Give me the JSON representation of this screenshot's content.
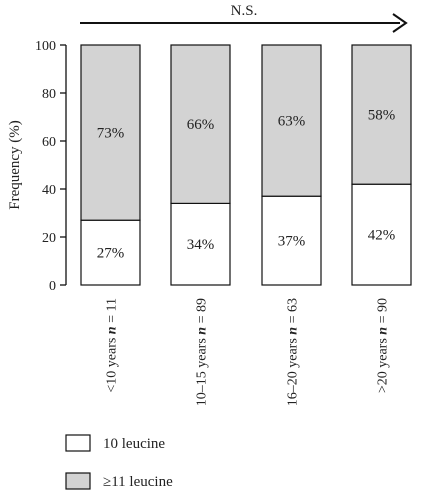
{
  "chart_data": {
    "type": "bar",
    "stacked": true,
    "categories": [
      {
        "prefix": "<10 years ",
        "n_label": "n",
        "suffix": " = 11"
      },
      {
        "prefix": "10–15 years ",
        "n_label": "n",
        "suffix": " = 89"
      },
      {
        "prefix": "16–20 years ",
        "n_label": "n",
        "suffix": " = 63"
      },
      {
        "prefix": ">20 years ",
        "n_label": "n",
        "suffix": " = 90"
      }
    ],
    "series": [
      {
        "name": "10 leucine",
        "color": "#ffffff",
        "values": [
          27,
          34,
          37,
          42
        ],
        "labels": [
          "27%",
          "34%",
          "37%",
          "42%"
        ]
      },
      {
        "name": "≥11 leucine",
        "color": "#d3d3d3",
        "values": [
          73,
          66,
          63,
          58
        ],
        "labels": [
          "73%",
          "66%",
          "63%",
          "58%"
        ]
      }
    ],
    "ylabel": "Frequency (%)",
    "ylim": [
      0,
      100
    ],
    "yticks": [
      "0",
      "20",
      "40",
      "60",
      "80",
      "100"
    ],
    "annotation": "N.S.",
    "legend_position": "bottom-left",
    "grid": false
  }
}
